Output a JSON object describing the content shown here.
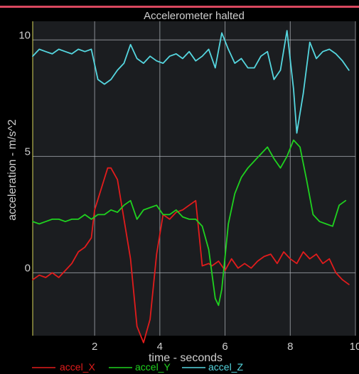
{
  "colors": {
    "background": "#000000",
    "plot_background": "#1b1d20",
    "grid": "#aeb2b8",
    "axis_text": "#cfcfcf",
    "top_accent": "#d9485f",
    "x_series": "#e21c1c",
    "y_series": "#1fd21f",
    "z_series": "#55d6df",
    "left_axis": "#d8d85a"
  },
  "chart_data": {
    "type": "line",
    "title": "Accelerometer halted",
    "xlabel": "time - seconds",
    "ylabel": "acceleration - m/s^2",
    "xlim": [
      0.1,
      10
    ],
    "ylim": [
      -2.7,
      10.8
    ],
    "xticks": [
      2,
      4,
      6,
      8,
      10
    ],
    "yticks": [
      0,
      5,
      10
    ],
    "grid": true,
    "legend_position": "bottom",
    "series": [
      {
        "name": "accel_X",
        "color": "#e21c1c",
        "x": [
          0.1,
          0.3,
          0.5,
          0.7,
          0.9,
          1.1,
          1.3,
          1.5,
          1.7,
          1.9,
          2.0,
          2.2,
          2.4,
          2.5,
          2.7,
          2.9,
          3.1,
          3.3,
          3.5,
          3.7,
          3.9,
          4.1,
          4.3,
          4.5,
          4.7,
          4.9,
          5.1,
          5.3,
          5.5,
          5.6,
          5.8,
          6.0,
          6.2,
          6.4,
          6.6,
          6.8,
          7.0,
          7.2,
          7.4,
          7.6,
          7.8,
          8.0,
          8.2,
          8.4,
          8.6,
          8.8,
          9.0,
          9.2,
          9.4,
          9.6,
          9.8
        ],
        "y": [
          -0.3,
          -0.1,
          -0.2,
          0.0,
          -0.2,
          0.1,
          0.4,
          0.9,
          1.1,
          1.5,
          2.7,
          3.6,
          4.5,
          4.5,
          4.0,
          2.3,
          0.6,
          -2.3,
          -3.0,
          -2.0,
          0.8,
          2.5,
          2.3,
          2.6,
          2.7,
          2.9,
          3.1,
          0.3,
          0.4,
          0.3,
          0.5,
          0.1,
          0.6,
          0.2,
          0.4,
          0.2,
          0.5,
          0.7,
          0.8,
          0.4,
          0.9,
          0.6,
          0.4,
          0.9,
          0.6,
          0.8,
          0.4,
          0.6,
          0.0,
          -0.3,
          -0.5
        ]
      },
      {
        "name": "accel_Y",
        "color": "#1fd21f",
        "x": [
          0.1,
          0.3,
          0.5,
          0.7,
          0.9,
          1.1,
          1.3,
          1.5,
          1.7,
          1.9,
          2.1,
          2.3,
          2.5,
          2.7,
          2.9,
          3.1,
          3.3,
          3.5,
          3.7,
          3.9,
          4.1,
          4.3,
          4.5,
          4.7,
          4.9,
          5.1,
          5.3,
          5.5,
          5.7,
          5.8,
          5.9,
          6.1,
          6.3,
          6.5,
          6.7,
          6.9,
          7.1,
          7.3,
          7.5,
          7.7,
          7.9,
          8.1,
          8.3,
          8.5,
          8.7,
          8.9,
          9.1,
          9.3,
          9.5,
          9.7
        ],
        "y": [
          2.2,
          2.1,
          2.2,
          2.3,
          2.3,
          2.2,
          2.3,
          2.3,
          2.5,
          2.3,
          2.5,
          2.5,
          2.7,
          2.6,
          2.9,
          3.1,
          2.3,
          2.7,
          2.8,
          2.9,
          2.5,
          2.5,
          2.7,
          2.4,
          2.3,
          2.3,
          2.0,
          1.0,
          -1.1,
          -1.4,
          -0.7,
          2.1,
          3.4,
          4.1,
          4.5,
          4.8,
          5.1,
          5.4,
          4.9,
          4.5,
          5.0,
          5.7,
          5.4,
          4.0,
          2.5,
          2.2,
          2.1,
          2.0,
          2.9,
          3.1
        ]
      },
      {
        "name": "accel_Z",
        "color": "#55d6df",
        "x": [
          0.1,
          0.3,
          0.5,
          0.7,
          0.9,
          1.1,
          1.3,
          1.5,
          1.7,
          1.9,
          2.1,
          2.3,
          2.5,
          2.7,
          2.9,
          3.1,
          3.3,
          3.5,
          3.7,
          3.9,
          4.1,
          4.3,
          4.5,
          4.7,
          4.9,
          5.1,
          5.3,
          5.5,
          5.7,
          5.9,
          6.1,
          6.3,
          6.5,
          6.7,
          6.9,
          7.1,
          7.3,
          7.5,
          7.7,
          7.9,
          8.1,
          8.2,
          8.4,
          8.6,
          8.8,
          9.0,
          9.2,
          9.4,
          9.6,
          9.8
        ],
        "y": [
          9.3,
          9.6,
          9.5,
          9.4,
          9.6,
          9.5,
          9.4,
          9.6,
          9.5,
          9.6,
          8.3,
          8.1,
          8.3,
          8.7,
          9.0,
          9.8,
          9.2,
          9.0,
          9.3,
          9.1,
          9.0,
          9.3,
          9.4,
          9.2,
          9.5,
          9.1,
          9.3,
          9.6,
          8.8,
          10.3,
          9.6,
          9.0,
          9.2,
          8.8,
          8.8,
          9.3,
          9.5,
          8.3,
          8.7,
          10.4,
          7.9,
          6.0,
          7.7,
          9.9,
          9.2,
          9.5,
          9.6,
          9.4,
          9.1,
          8.7
        ]
      }
    ]
  }
}
